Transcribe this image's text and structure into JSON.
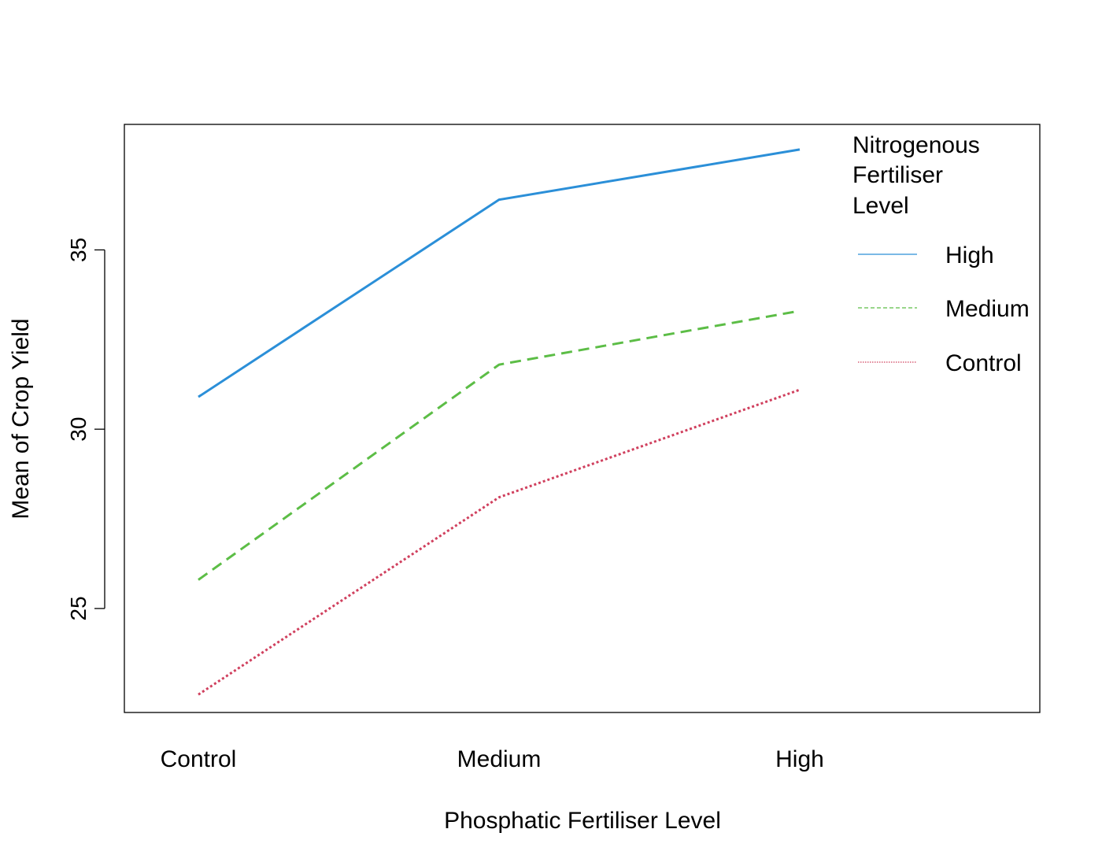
{
  "chart_data": {
    "type": "line",
    "title": "",
    "xlabel": "Phosphatic Fertiliser Level",
    "ylabel": "Mean of Crop Yield",
    "categories": [
      "Control",
      "Medium",
      "High"
    ],
    "ylim": [
      22.1,
      38.5
    ],
    "yticks": [
      "25",
      "30",
      "35"
    ],
    "grid": false,
    "legend": {
      "title_lines": [
        "Nitrogenous",
        "Fertiliser",
        "Level"
      ],
      "placement": "top-right"
    },
    "series": [
      {
        "name": "High",
        "values": [
          30.9,
          36.4,
          37.8
        ],
        "color": "#2b8fd8",
        "dash": "solid"
      },
      {
        "name": "Medium",
        "values": [
          25.8,
          31.8,
          33.3
        ],
        "color": "#5cbd46",
        "dash": "dashed"
      },
      {
        "name": "Control",
        "values": [
          22.6,
          28.1,
          31.1
        ],
        "color": "#d0405e",
        "dash": "dotted"
      }
    ]
  }
}
